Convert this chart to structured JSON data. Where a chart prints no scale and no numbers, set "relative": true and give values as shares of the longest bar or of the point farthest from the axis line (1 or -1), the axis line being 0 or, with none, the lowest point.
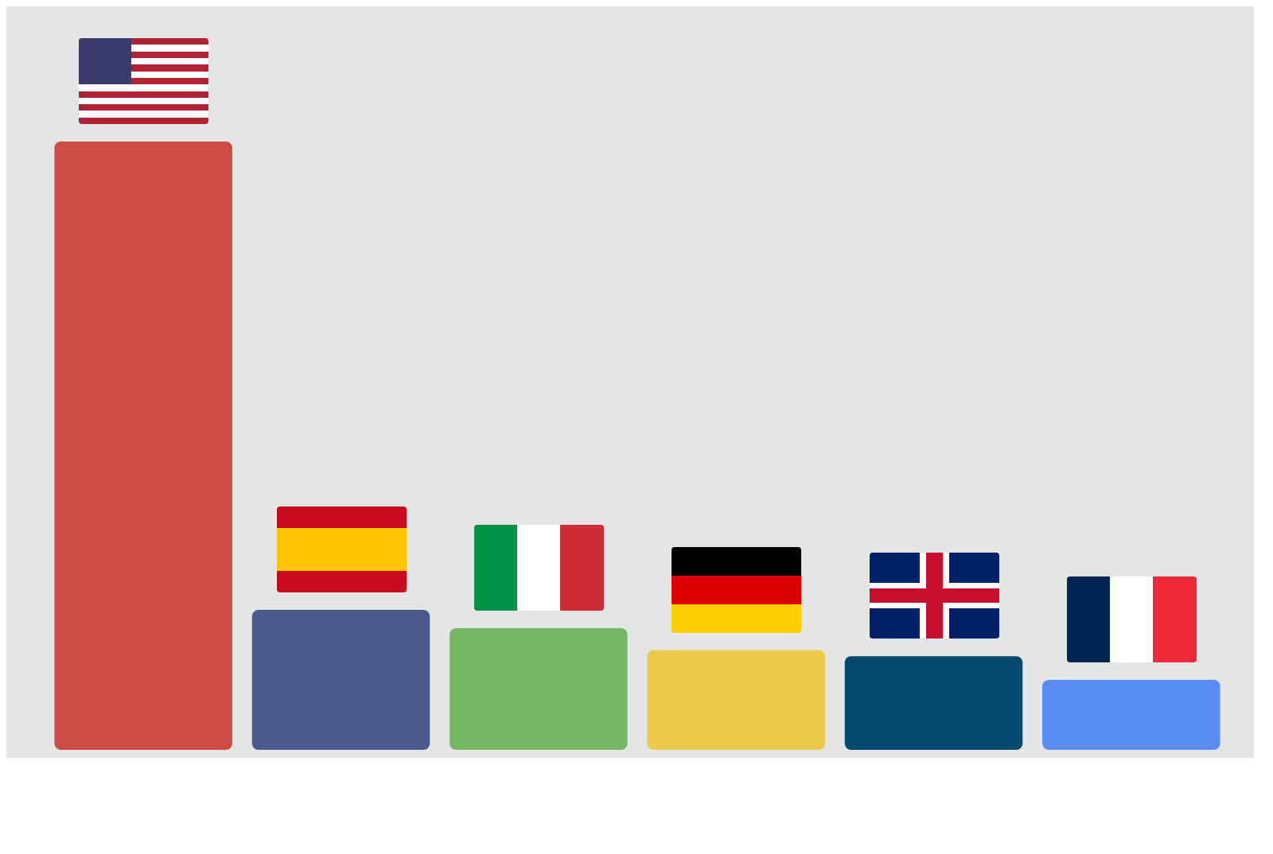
{
  "chart_data": {
    "type": "bar",
    "relative": true,
    "categories": [
      null,
      null,
      null,
      null,
      null,
      null
    ],
    "values": [
      1,
      0.23,
      0.2,
      0.164,
      0.154,
      0.115
    ],
    "colors": [
      "#cc4b44",
      "#4a5a8c",
      "#76b765",
      "#ebc94a",
      "#034a6e",
      "#5a8cf5"
    ],
    "legend": false
  }
}
